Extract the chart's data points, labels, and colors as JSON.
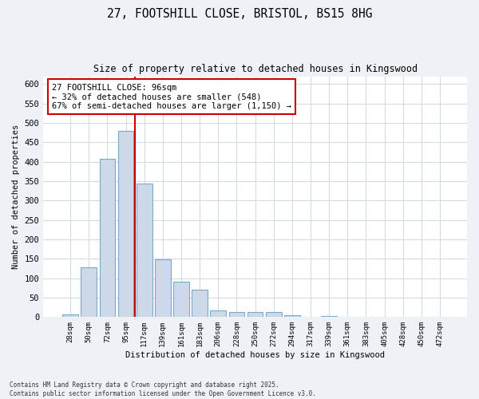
{
  "title_line1": "27, FOOTSHILL CLOSE, BRISTOL, BS15 8HG",
  "title_line2": "Size of property relative to detached houses in Kingswood",
  "xlabel": "Distribution of detached houses by size in Kingswood",
  "ylabel": "Number of detached properties",
  "bar_labels": [
    "28sqm",
    "50sqm",
    "72sqm",
    "95sqm",
    "117sqm",
    "139sqm",
    "161sqm",
    "183sqm",
    "206sqm",
    "228sqm",
    "250sqm",
    "272sqm",
    "294sqm",
    "317sqm",
    "339sqm",
    "361sqm",
    "383sqm",
    "405sqm",
    "428sqm",
    "450sqm",
    "472sqm"
  ],
  "bar_values": [
    7,
    128,
    408,
    480,
    343,
    148,
    91,
    70,
    17,
    14,
    13,
    13,
    5,
    0,
    3,
    0,
    0,
    0,
    0,
    0,
    1
  ],
  "bar_color": "#cdd9e8",
  "bar_edge_color": "#7aaac8",
  "vline_x": 3.5,
  "vline_color": "#cc0000",
  "annotation_text": "27 FOOTSHILL CLOSE: 96sqm\n← 32% of detached houses are smaller (548)\n67% of semi-detached houses are larger (1,150) →",
  "annotation_box_color": "#ffffff",
  "annotation_box_edge": "#cc0000",
  "ylim": [
    0,
    620
  ],
  "yticks": [
    0,
    50,
    100,
    150,
    200,
    250,
    300,
    350,
    400,
    450,
    500,
    550,
    600
  ],
  "footer_line1": "Contains HM Land Registry data © Crown copyright and database right 2025.",
  "footer_line2": "Contains public sector information licensed under the Open Government Licence v3.0.",
  "bg_color": "#eef2f7",
  "plot_bg_color": "#ffffff",
  "grid_color": "#c8d4e0"
}
